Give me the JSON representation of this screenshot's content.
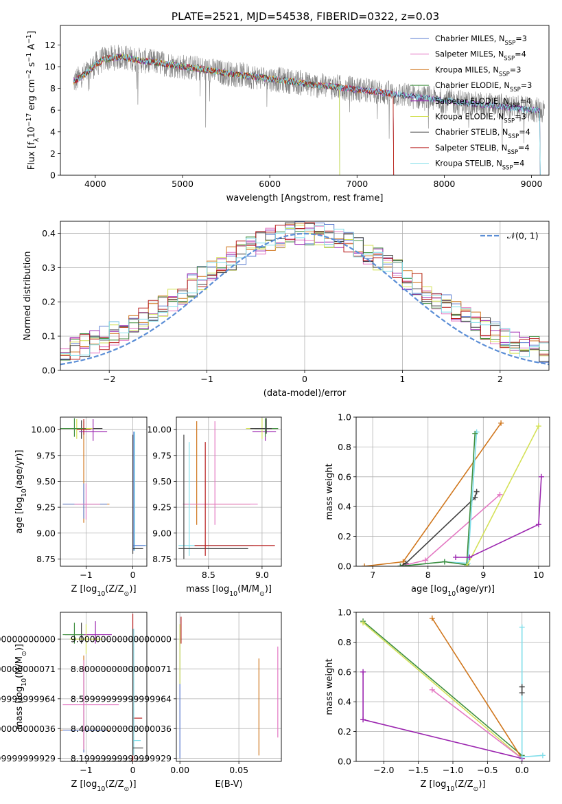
{
  "title": "PLATE=2521, MJD=54538, FIBERID=0322, z=0.03",
  "colors": {
    "grid": "#b0b0b0",
    "data": "#808080",
    "normal": "#5b8ed6"
  },
  "models": [
    {
      "name": "Chabrier MILES, N",
      "sub": "SSP",
      "tail": "=3",
      "color": "#5a7bd0"
    },
    {
      "name": "Salpeter MILES, N",
      "sub": "SSP",
      "tail": "=4",
      "color": "#e377c2"
    },
    {
      "name": "Kroupa MILES, N",
      "sub": "SSP",
      "tail": "=3",
      "color": "#d0761c"
    },
    {
      "name": "Chabrier ELODIE, N",
      "sub": "SSP",
      "tail": "=3",
      "color": "#3f8f3f"
    },
    {
      "name": "Salpeter ELODIE, N",
      "sub": "SSP",
      "tail": "=4",
      "color": "#9c27b0"
    },
    {
      "name": "Kroupa ELODIE, N",
      "sub": "SSP",
      "tail": "=3",
      "color": "#d4e157"
    },
    {
      "name": "Chabrier STELIB, N",
      "sub": "SSP",
      "tail": "=4",
      "color": "#404040"
    },
    {
      "name": "Salpeter STELIB, N",
      "sub": "SSP",
      "tail": "=4",
      "color": "#b71c1c"
    },
    {
      "name": "Kroupa STELIB, N",
      "sub": "SSP",
      "tail": "=4",
      "color": "#80deea"
    }
  ],
  "chart_data": [
    {
      "id": "spectrum",
      "type": "line",
      "title": "PLATE=2521, MJD=54538, FIBERID=0322, z=0.03",
      "xlabel": "wavelength [Angstrom, rest frame]",
      "ylabel_parts": [
        "Flux [f",
        "λ",
        "10",
        "−17",
        " erg cm",
        "−2",
        " s",
        "−1",
        " A",
        "−1",
        "]"
      ],
      "xlim": [
        3600,
        9200
      ],
      "ylim": [
        0,
        13.8
      ],
      "xticks": [
        4000,
        5000,
        6000,
        7000,
        8000,
        9000
      ],
      "yticks": [
        0,
        2,
        4,
        6,
        8,
        10,
        12
      ],
      "grid": false,
      "legend": "top-right",
      "continuum": {
        "x": [
          3750,
          3900,
          4000,
          4100,
          4300,
          4500,
          4700,
          5000,
          5200,
          5500,
          5800,
          6000,
          6300,
          6500,
          6800,
          7000,
          7200,
          7400,
          7600,
          7800,
          8000,
          8300,
          8600,
          8800,
          9000
        ],
        "y": [
          8.6,
          9.4,
          10.2,
          10.7,
          10.9,
          10.6,
          10.4,
          10.0,
          9.8,
          9.4,
          9.1,
          8.9,
          8.6,
          8.3,
          8.1,
          7.9,
          7.7,
          7.5,
          7.3,
          7.1,
          6.9,
          6.6,
          6.4,
          6.2,
          6.0
        ]
      },
      "observed_range": [
        3750,
        9150
      ],
      "model_ranges": [
        {
          "model": 0,
          "x": [
            3750,
            7420
          ]
        },
        {
          "model": 1,
          "x": [
            3750,
            7420
          ]
        },
        {
          "model": 2,
          "x": [
            3750,
            7420
          ]
        },
        {
          "model": 3,
          "x": [
            3750,
            6800
          ]
        },
        {
          "model": 4,
          "x": [
            3750,
            9100
          ]
        },
        {
          "model": 5,
          "x": [
            3750,
            6800
          ]
        },
        {
          "model": 6,
          "x": [
            3750,
            9100
          ]
        },
        {
          "model": 7,
          "x": [
            3750,
            7420
          ]
        },
        {
          "model": 8,
          "x": [
            3750,
            9100
          ]
        }
      ]
    },
    {
      "id": "residuals",
      "type": "histogram",
      "xlabel": "(data-model)/error",
      "ylabel": "Normed distribution",
      "xlim": [
        -2.5,
        2.5
      ],
      "ylim": [
        0,
        0.435
      ],
      "xticks": [
        -2,
        -1,
        0,
        1,
        2
      ],
      "yticks": [
        0.0,
        0.1,
        0.2,
        0.3,
        0.4
      ],
      "grid": true,
      "bin_width": 0.1,
      "legend": "top-right",
      "legend_label": "𝒩(0, 1)",
      "curve": "normal, mean 0, sigma 1"
    },
    {
      "id": "age_vs_Z",
      "type": "errorbar",
      "xlabel_parts": [
        "Z [log",
        "10",
        "(Z/Z",
        "⊙",
        ")]"
      ],
      "ylabel_parts": [
        "age  [log",
        "10",
        "(age/yr)]"
      ],
      "xlim": [
        -1.55,
        0.3
      ],
      "ylim": [
        8.68,
        10.12
      ],
      "xticks": [
        -1,
        0
      ],
      "yticks": [
        8.75,
        9.0,
        9.25,
        9.5,
        9.75,
        10.0
      ],
      "grid": true,
      "points": [
        {
          "model": 2,
          "x": -1.05,
          "y": 9.28,
          "xerr": [
            0.45,
            0.55
          ],
          "yerr": [
            0.18,
            0.8
          ]
        },
        {
          "model": 0,
          "x": -1.05,
          "y": 9.28,
          "xerr": [
            0.45,
            0.5
          ],
          "yerr": [
            0.14,
            0.2
          ]
        },
        {
          "model": 1,
          "x": -1.0,
          "y": 9.28,
          "xerr": [
            0.25,
            0.3
          ],
          "yerr": [
            0.15,
            0.2
          ]
        },
        {
          "model": 6,
          "x": -1.1,
          "y": 10.01,
          "xerr": [
            0.45,
            0.45
          ],
          "yerr": [
            0.1,
            0.08
          ]
        },
        {
          "model": 5,
          "x": -1.2,
          "y": 10.01,
          "xerr": [
            0.35,
            0.35
          ],
          "yerr": [
            0.1,
            0.09
          ]
        },
        {
          "model": 3,
          "x": -1.25,
          "y": 10.01,
          "xerr": [
            0.3,
            0.25
          ],
          "yerr": [
            0.08,
            0.1
          ]
        },
        {
          "model": 4,
          "x": -0.85,
          "y": 9.98,
          "xerr": [
            0.3,
            0.3
          ],
          "yerr": [
            0.09,
            0.12
          ]
        },
        {
          "model": 7,
          "x": -1.05,
          "y": 10.0,
          "xerr": [
            0.15,
            0.15
          ],
          "yerr": [
            0.05,
            0.1
          ]
        },
        {
          "model": 8,
          "x": 0.04,
          "y": 8.88,
          "xerr": [
            0.04,
            0.25
          ],
          "yerr": [
            0.05,
            1.1
          ]
        },
        {
          "model": 0,
          "x": 0.02,
          "y": 8.88,
          "xerr": [
            0.02,
            0.25
          ],
          "yerr": [
            0.05,
            1.1
          ]
        },
        {
          "model": 6,
          "x": 0.0,
          "y": 8.85,
          "xerr": [
            0.01,
            0.22
          ],
          "yerr": [
            0.05,
            1.1
          ]
        }
      ]
    },
    {
      "id": "age_vs_mass",
      "type": "errorbar",
      "xlabel_parts": [
        "mass [log",
        "10",
        "(M/M",
        "⊙",
        ")]"
      ],
      "ylabel_parts": [],
      "xlim": [
        8.2,
        9.18
      ],
      "ylim": [
        8.68,
        10.12
      ],
      "xticks": [
        8.5,
        9.0
      ],
      "yticks": [
        8.75,
        9.0,
        9.25,
        9.5,
        9.75,
        10.0
      ],
      "grid": true,
      "points": [
        {
          "model": 2,
          "x": 8.39,
          "y": 9.28,
          "xerr": [
            0.12,
            0.5
          ],
          "yerr": [
            0.2,
            0.8
          ]
        },
        {
          "model": 1,
          "x": 8.56,
          "y": 9.28,
          "xerr": [
            0.3,
            0.4
          ],
          "yerr": [
            0.2,
            0.8
          ]
        },
        {
          "model": 8,
          "x": 8.32,
          "y": 8.88,
          "xerr": [
            0.1,
            0.6
          ],
          "yerr": [
            0.1,
            1.0
          ]
        },
        {
          "model": 6,
          "x": 8.27,
          "y": 8.85,
          "xerr": [
            0.05,
            0.6
          ],
          "yerr": [
            0.1,
            1.1
          ]
        },
        {
          "model": 7,
          "x": 8.47,
          "y": 8.88,
          "xerr": [
            0.1,
            0.65
          ],
          "yerr": [
            0.1,
            1.0
          ]
        },
        {
          "model": 4,
          "x": 9.03,
          "y": 9.98,
          "xerr": [
            0.12,
            0.1
          ],
          "yerr": [
            0.09,
            0.12
          ]
        },
        {
          "model": 5,
          "x": 9.0,
          "y": 10.01,
          "xerr": [
            0.15,
            0.15
          ],
          "yerr": [
            0.1,
            0.1
          ]
        },
        {
          "model": 3,
          "x": 9.03,
          "y": 10.01,
          "xerr": [
            0.1,
            0.12
          ],
          "yerr": [
            0.08,
            0.1
          ]
        },
        {
          "model": 6,
          "x": 9.04,
          "y": 10.01,
          "xerr": [
            0.15,
            0.05
          ],
          "yerr": [
            0.05,
            0.1
          ]
        }
      ]
    },
    {
      "id": "weight_vs_age",
      "type": "line",
      "xlabel_parts": [
        "age  [log",
        "10",
        "(age/yr)]"
      ],
      "ylabel": "mass weight",
      "xlim": [
        6.7,
        10.2
      ],
      "ylim": [
        0,
        1.0
      ],
      "xticks": [
        7,
        8,
        9,
        10
      ],
      "yticks": [
        0.0,
        0.2,
        0.4,
        0.6,
        0.8,
        1.0
      ],
      "grid": true,
      "series": [
        {
          "model": 2,
          "x": [
            6.85,
            7.55,
            9.32
          ],
          "y": [
            0.0,
            0.03,
            0.96
          ]
        },
        {
          "model": 1,
          "x": [
            7.5,
            7.95,
            9.3
          ],
          "y": [
            0.0,
            0.04,
            0.48
          ]
        },
        {
          "model": 6,
          "x": [
            7.5,
            7.6,
            8.85,
            8.88
          ],
          "y": [
            0.0,
            0.02,
            0.46,
            0.5
          ]
        },
        {
          "model": 8,
          "x": [
            7.5,
            8.3,
            8.72,
            8.88
          ],
          "y": [
            0.0,
            0.03,
            0.02,
            0.9
          ]
        },
        {
          "model": 3,
          "x": [
            7.5,
            8.3,
            8.7,
            8.85
          ],
          "y": [
            0.0,
            0.03,
            0.01,
            0.89
          ]
        },
        {
          "model": 5,
          "x": [
            8.7,
            10.0
          ],
          "y": [
            0.0,
            0.94
          ]
        },
        {
          "model": 4,
          "x": [
            8.5,
            8.75,
            10.0,
            10.05
          ],
          "y": [
            0.06,
            0.06,
            0.28,
            0.6
          ]
        }
      ]
    },
    {
      "id": "mass_vs_Z",
      "type": "errorbar",
      "xlabel_parts": [
        "Z [log",
        "10",
        "(Z/Z",
        "⊙",
        ")]"
      ],
      "ylabel_parts": [
        "mass [log",
        "10",
        "(M/M",
        "⊙",
        ")]"
      ],
      "xlim": [
        -1.55,
        0.3
      ],
      "ylim": [
        8.18,
        9.18
      ],
      "xticks": [
        -1,
        0
      ],
      "yticks": [
        8.2,
        8.4,
        8.6,
        8.8,
        9.0
      ],
      "grid": true,
      "points": [
        {
          "model": 2,
          "x": -1.05,
          "y": 8.39,
          "xerr": [
            0.5,
            0.55
          ],
          "yerr": [
            0.15,
            0.5
          ]
        },
        {
          "model": 0,
          "x": -1.05,
          "y": 8.39,
          "xerr": [
            0.45,
            0.5
          ],
          "yerr": [
            0.15,
            0.4
          ]
        },
        {
          "model": 1,
          "x": -1.05,
          "y": 8.56,
          "xerr": [
            0.45,
            0.75
          ],
          "yerr": [
            0.3,
            0.3
          ]
        },
        {
          "model": 6,
          "x": -1.1,
          "y": 9.03,
          "xerr": [
            0.35,
            0.4
          ],
          "yerr": [
            0.06,
            0.08
          ]
        },
        {
          "model": 4,
          "x": -0.8,
          "y": 9.03,
          "xerr": [
            0.35,
            0.35
          ],
          "yerr": [
            0.06,
            0.09
          ]
        },
        {
          "model": 5,
          "x": -1.0,
          "y": 9.0,
          "xerr": [
            0.35,
            0.35
          ],
          "yerr": [
            0.1,
            0.1
          ]
        },
        {
          "model": 3,
          "x": -1.25,
          "y": 9.03,
          "xerr": [
            0.25,
            0.2
          ],
          "yerr": [
            0.06,
            0.08
          ]
        },
        {
          "model": 7,
          "x": 0.0,
          "y": 8.47,
          "xerr": [
            0.0,
            0.2
          ],
          "yerr": [
            0.3,
            0.7
          ]
        },
        {
          "model": 8,
          "x": 0.02,
          "y": 8.32,
          "xerr": [
            0.02,
            0.15
          ],
          "yerr": [
            0.1,
            0.75
          ]
        },
        {
          "model": 6,
          "x": 0.0,
          "y": 8.27,
          "xerr": [
            0.0,
            0.22
          ],
          "yerr": [
            0.05,
            0.8
          ]
        }
      ]
    },
    {
      "id": "mass_vs_EBV",
      "type": "errorbar",
      "xlabel": "E(B-V)",
      "ylabel_parts": [],
      "xlim": [
        -0.003,
        0.086
      ],
      "ylim": [
        8.18,
        9.18
      ],
      "xticks": [
        0.0,
        0.05
      ],
      "yticks": [
        8.2,
        8.4,
        8.6,
        8.8,
        9.0
      ],
      "grid": true,
      "points": [
        {
          "model": 0,
          "x": 0.0,
          "y": 8.45,
          "yerr": [
            0.25,
            0.65
          ]
        },
        {
          "model": 7,
          "x": 0.001,
          "y": 9.05,
          "yerr": [
            0.08,
            0.1
          ]
        },
        {
          "model": 5,
          "x": 0.0,
          "y": 8.9,
          "yerr": [
            0.2,
            0.2
          ]
        },
        {
          "model": 2,
          "x": 0.067,
          "y": 8.5,
          "yerr": [
            0.28,
            0.37
          ]
        },
        {
          "model": 1,
          "x": 0.083,
          "y": 8.62,
          "yerr": [
            0.28,
            0.33
          ]
        }
      ]
    },
    {
      "id": "weight_vs_Z",
      "type": "line",
      "xlabel_parts": [
        "Z [log",
        "10",
        "(Z/Z",
        "⊙",
        ")]"
      ],
      "ylabel": "mass weight",
      "xlim": [
        -2.4,
        0.4
      ],
      "ylim": [
        0,
        1.0
      ],
      "xticks": [
        -2.0,
        -1.5,
        -1.0,
        -0.5,
        0.0
      ],
      "yticks": [
        0.0,
        0.2,
        0.4,
        0.6,
        0.8,
        1.0
      ],
      "grid": true,
      "series": [
        {
          "model": 3,
          "x": [
            -2.3,
            0.0
          ],
          "y": [
            0.94,
            0.04
          ]
        },
        {
          "model": 5,
          "x": [
            -2.3,
            0.0
          ],
          "y": [
            0.93,
            0.02
          ]
        },
        {
          "model": 2,
          "x": [
            -1.3,
            0.0
          ],
          "y": [
            0.96,
            0.02
          ]
        },
        {
          "model": 1,
          "x": [
            -1.3,
            0.0
          ],
          "y": [
            0.48,
            0.02
          ]
        },
        {
          "model": 4,
          "x": [
            -2.3,
            -2.3,
            0.0
          ],
          "y": [
            0.6,
            0.28,
            0.02
          ]
        },
        {
          "model": 8,
          "x": [
            0.0,
            0.0,
            0.3
          ],
          "y": [
            0.9,
            0.03,
            0.04
          ]
        },
        {
          "model": 6,
          "x": [
            0.0,
            0.0
          ],
          "y": [
            0.5,
            0.46
          ]
        }
      ]
    }
  ]
}
